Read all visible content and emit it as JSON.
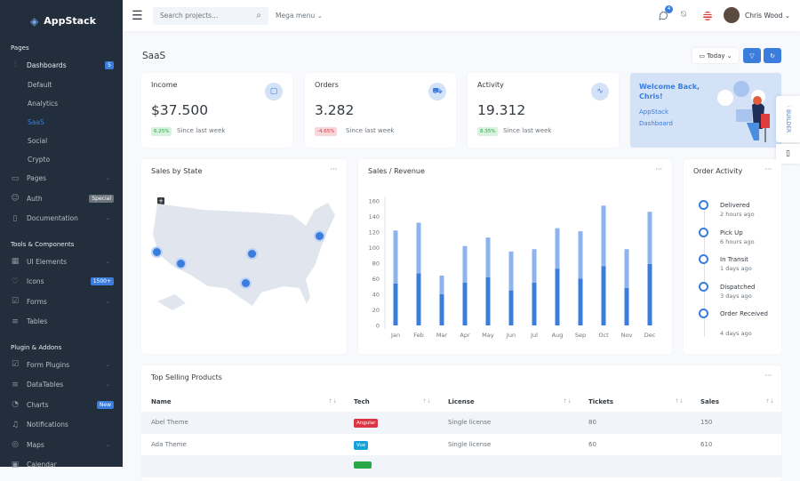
{
  "brand": {
    "name": "AppStack"
  },
  "sidebar": {
    "sections": [
      "Pages",
      "Tools & Components",
      "Plugin & Addons"
    ],
    "dashboards": {
      "label": "Dashboards",
      "badge": "5"
    },
    "sub": [
      "Default",
      "Analytics",
      "SaaS",
      "Social",
      "Crypto"
    ],
    "pages": "Pages",
    "auth": "Auth",
    "auth_badge": "Special",
    "documentation": "Documentation",
    "ui_elements": "UI Elements",
    "icons": "Icons",
    "icons_badge": "1500+",
    "forms": "Forms",
    "tables": "Tables",
    "form_plugins": "Form Plugins",
    "datatables": "DataTables",
    "charts": "Charts",
    "charts_badge": "New",
    "notifications": "Notifications",
    "maps": "Maps",
    "calendar": "Calendar"
  },
  "header": {
    "search_placeholder": "Search projects...",
    "mega_menu": "Mega menu",
    "messages_count": "4",
    "user": "Chris Wood"
  },
  "page": {
    "title": "SaaS",
    "date_filter": "Today"
  },
  "stats": [
    {
      "title": "Income",
      "value": "$37.500",
      "change": "6.25%",
      "trend": "up",
      "since": "Since last week",
      "icon": "shopping-bag-icon"
    },
    {
      "title": "Orders",
      "value": "3.282",
      "change": "-4.65%",
      "trend": "down",
      "since": "Since last week",
      "icon": "shopping-cart-icon"
    },
    {
      "title": "Activity",
      "value": "19.312",
      "change": "8.35%",
      "trend": "up",
      "since": "Since last week",
      "icon": "activity-icon"
    }
  ],
  "welcome": {
    "title": "Welcome Back, Chris!",
    "subtitle": "AppStack Dashboard"
  },
  "builder": {
    "label": "BUILDER"
  },
  "map": {
    "title": "Sales by State"
  },
  "revenue": {
    "title": "Sales / Revenue"
  },
  "chart_data": {
    "type": "bar",
    "stacked": true,
    "categories": [
      "Jan",
      "Feb",
      "Mar",
      "Apr",
      "May",
      "Jun",
      "Jul",
      "Aug",
      "Sep",
      "Oct",
      "Nov",
      "Dec"
    ],
    "series": [
      {
        "values": [
          54,
          67,
          40,
          55,
          62,
          45,
          55,
          73,
          60,
          76,
          48,
          79
        ],
        "color": "#3b7ddd"
      },
      {
        "values": [
          68,
          65,
          24,
          47,
          51,
          50,
          43,
          52,
          61,
          78,
          50,
          67
        ],
        "color": "#8db4ee"
      }
    ],
    "yticks": [
      0,
      20,
      40,
      60,
      80,
      100,
      120,
      140,
      160
    ],
    "ylim": [
      0,
      160
    ],
    "grid": false
  },
  "order_activity": {
    "title": "Order Activity",
    "items": [
      {
        "status": "Delivered",
        "time": "2 hours ago"
      },
      {
        "status": "Pick Up",
        "time": "6 hours ago"
      },
      {
        "status": "In Transit",
        "time": "1 days ago"
      },
      {
        "status": "Dispatched",
        "time": "3 days ago"
      },
      {
        "status": "Order Received",
        "time": "4 days ago"
      }
    ]
  },
  "products": {
    "title": "Top Selling Products",
    "columns": [
      "Name",
      "Tech",
      "License",
      "Tickets",
      "Sales"
    ],
    "rows": [
      {
        "name": "Abel Theme",
        "tech": "Angular",
        "tech_color": "#dc3545",
        "license": "Single license",
        "tickets": "80",
        "sales": "150"
      },
      {
        "name": "Ada Theme",
        "tech": "Vue",
        "tech_color": "#17a2d8",
        "license": "Single license",
        "tickets": "60",
        "sales": "610"
      }
    ]
  }
}
